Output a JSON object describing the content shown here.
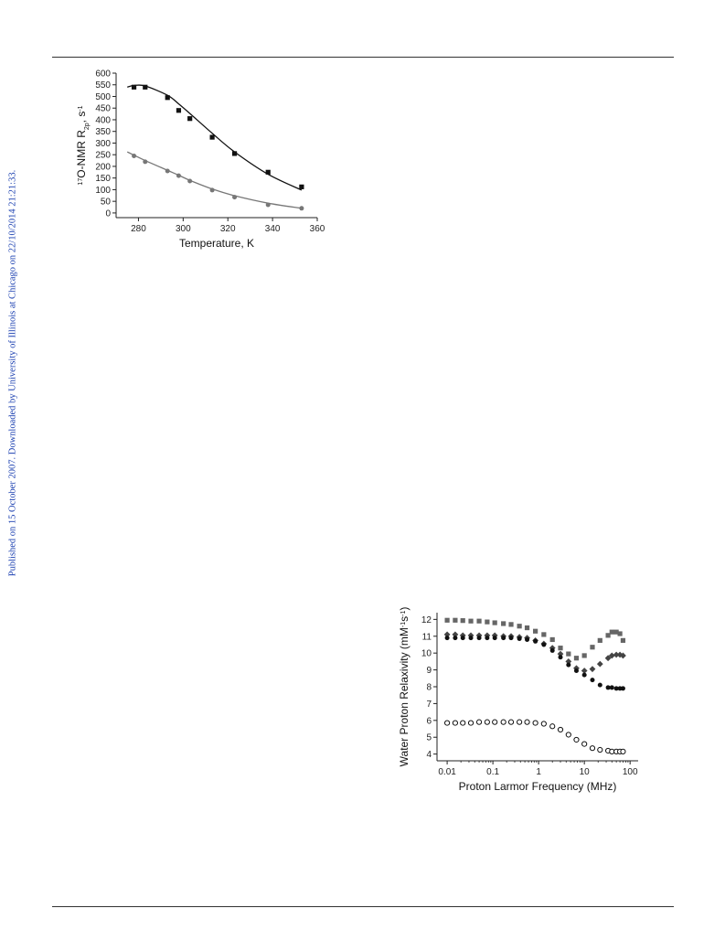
{
  "header": {},
  "side_note": "Published on 15 October 2007. Downloaded by University of Illinois at Chicago on 22/10/2014 21:21:33.",
  "colors": {
    "black": "#111111",
    "grey": "#777777",
    "link": "#1a3fb0"
  },
  "chart_data": [
    {
      "type": "scatter",
      "title": "",
      "xlabel": "Temperature, K",
      "ylabel": "17O-NMR R2p, s-1",
      "xlim": [
        270,
        360
      ],
      "ylim": [
        -20,
        600
      ],
      "xticks": [
        "280",
        "300",
        "320",
        "340",
        "360"
      ],
      "yticks": [
        "0",
        "50",
        "100",
        "150",
        "200",
        "250",
        "300",
        "350",
        "400",
        "450",
        "500",
        "550",
        "600"
      ],
      "grid": false,
      "series": [
        {
          "marker": "square",
          "color": "#111111",
          "x": [
            278,
            283,
            293,
            298,
            303,
            313,
            323,
            338,
            353
          ],
          "y": [
            540,
            540,
            495,
            440,
            405,
            325,
            255,
            175,
            112
          ],
          "fit_x": [
            275,
            278,
            283,
            293,
            298,
            303,
            313,
            323,
            338,
            353
          ],
          "fit_y": [
            540,
            547,
            545,
            505,
            468,
            427,
            342,
            262,
            166,
            98
          ]
        },
        {
          "marker": "circle",
          "color": "#777777",
          "x": [
            278,
            283,
            293,
            298,
            303,
            313,
            323,
            338,
            353
          ],
          "y": [
            245,
            220,
            180,
            160,
            137,
            98,
            68,
            35,
            20
          ],
          "fit_x": [
            275,
            278,
            283,
            293,
            298,
            303,
            313,
            323,
            338,
            353
          ],
          "fit_y": [
            262,
            248,
            225,
            183,
            162,
            140,
            103,
            74,
            42,
            20
          ]
        }
      ]
    },
    {
      "type": "scatter",
      "title": "",
      "xlabel": "Proton Larmor Frequency (MHz)",
      "ylabel": "Water Proton Relaxivity (mM-1s-1)",
      "xscale": "log",
      "xlim": [
        0.006,
        150
      ],
      "ylim": [
        3.6,
        12.4
      ],
      "xticks": [
        "0.01",
        "0.1",
        "1",
        "10",
        "100"
      ],
      "yticks": [
        "4",
        "5",
        "6",
        "7",
        "8",
        "9",
        "10",
        "11",
        "12"
      ],
      "grid": false,
      "series": [
        {
          "marker": "square",
          "color": "#666666",
          "x": [
            0.01,
            0.015,
            0.022,
            0.033,
            0.05,
            0.075,
            0.11,
            0.17,
            0.25,
            0.38,
            0.56,
            0.85,
            1.3,
            2,
            3,
            4.5,
            6.7,
            10,
            15,
            22,
            33,
            40,
            50,
            60,
            70
          ],
          "y": [
            11.95,
            11.95,
            11.93,
            11.9,
            11.9,
            11.85,
            11.8,
            11.75,
            11.7,
            11.6,
            11.5,
            11.3,
            11.1,
            10.8,
            10.3,
            9.95,
            9.7,
            9.85,
            10.35,
            10.75,
            11.05,
            11.25,
            11.25,
            11.15,
            10.75
          ]
        },
        {
          "marker": "diamond",
          "color": "#444444",
          "x": [
            0.01,
            0.015,
            0.022,
            0.033,
            0.05,
            0.075,
            0.11,
            0.17,
            0.25,
            0.38,
            0.56,
            0.85,
            1.3,
            2,
            3,
            4.5,
            6.7,
            10,
            15,
            22,
            33,
            40,
            50,
            60,
            70
          ],
          "y": [
            11.1,
            11.1,
            11.05,
            11.05,
            11.05,
            11.05,
            11.05,
            11.0,
            11.0,
            10.95,
            10.9,
            10.75,
            10.55,
            10.3,
            9.95,
            9.5,
            9.1,
            8.95,
            9.05,
            9.35,
            9.7,
            9.85,
            9.9,
            9.9,
            9.85
          ]
        },
        {
          "marker": "circle-filled",
          "color": "#111111",
          "x": [
            0.01,
            0.015,
            0.022,
            0.033,
            0.05,
            0.075,
            0.11,
            0.17,
            0.25,
            0.38,
            0.56,
            0.85,
            1.3,
            2,
            3,
            4.5,
            6.7,
            10,
            15,
            22,
            33,
            40,
            50,
            60,
            70
          ],
          "y": [
            10.9,
            10.9,
            10.9,
            10.9,
            10.9,
            10.9,
            10.9,
            10.9,
            10.9,
            10.85,
            10.8,
            10.7,
            10.5,
            10.15,
            9.75,
            9.3,
            8.95,
            8.7,
            8.4,
            8.1,
            7.95,
            7.95,
            7.9,
            7.9,
            7.9
          ]
        },
        {
          "marker": "circle-open",
          "color": "#111111",
          "x": [
            0.01,
            0.015,
            0.022,
            0.033,
            0.05,
            0.075,
            0.11,
            0.17,
            0.25,
            0.38,
            0.56,
            0.85,
            1.3,
            2,
            3,
            4.5,
            6.7,
            10,
            15,
            22,
            33,
            40,
            50,
            60,
            70
          ],
          "y": [
            5.85,
            5.85,
            5.85,
            5.85,
            5.9,
            5.9,
            5.9,
            5.9,
            5.9,
            5.9,
            5.9,
            5.85,
            5.8,
            5.65,
            5.45,
            5.15,
            4.85,
            4.6,
            4.35,
            4.25,
            4.2,
            4.15,
            4.15,
            4.15,
            4.15
          ]
        }
      ]
    }
  ]
}
